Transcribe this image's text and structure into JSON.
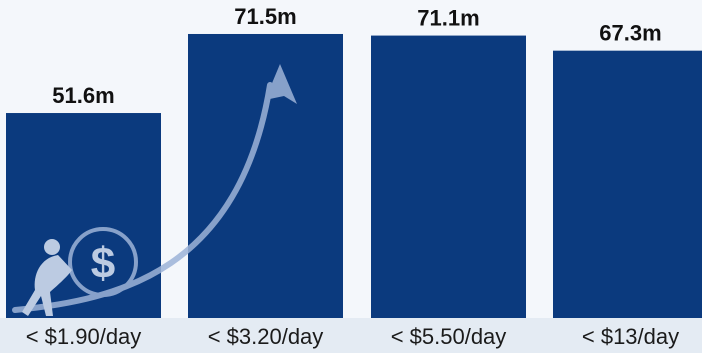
{
  "chart_data": {
    "type": "bar",
    "categories": [
      "< $1.90/day",
      "< $3.20/day",
      "< $5.50/day",
      "< $13/day"
    ],
    "values": [
      51.6,
      71.5,
      71.1,
      67.3
    ],
    "value_labels": [
      "51.6m",
      "71.5m",
      "71.1m",
      "67.3m"
    ],
    "title": "",
    "xlabel": "",
    "ylabel": "",
    "ylim": [
      0,
      72
    ],
    "grid": false,
    "legend": "none"
  },
  "colors": {
    "bar": "#0b3a7e",
    "background": "#f4f7fb",
    "axis_band": "#e4ebf3",
    "arrow": "#9db3d8"
  },
  "icons": {
    "decoration": "person-pushing-dollar-coin-icon",
    "arrow": "curved-arrow-up-icon"
  }
}
